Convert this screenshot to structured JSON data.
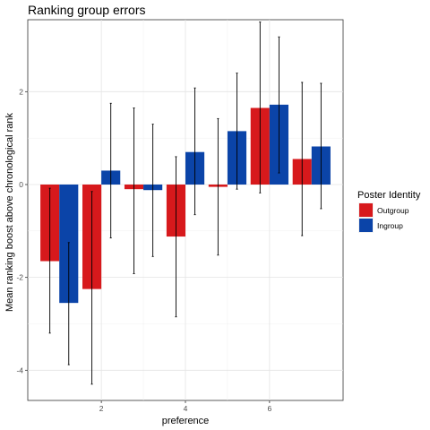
{
  "chart_data": {
    "type": "bar",
    "title": "Ranking group errors",
    "xlabel": "preference",
    "ylabel": "Mean ranking boost above chronological rank",
    "x": [
      1,
      2,
      3,
      4,
      5,
      6,
      7
    ],
    "xlim": [
      0.25,
      7.75
    ],
    "ylim": [
      -4.65,
      3.55
    ],
    "x_ticks": [
      2,
      4,
      6
    ],
    "x_tick_labels": [
      "2",
      "4",
      "6"
    ],
    "y_ticks": [
      -4,
      -2,
      0,
      2
    ],
    "y_tick_labels": [
      "-4",
      "-2",
      "0",
      "2"
    ],
    "grid": true,
    "legend": {
      "title": "Poster Identity",
      "position": "right"
    },
    "series": [
      {
        "name": "Outgroup",
        "color": "#d7191c",
        "values": [
          -1.65,
          -2.25,
          -0.1,
          -1.12,
          -0.05,
          1.65,
          0.55
        ],
        "error_low": [
          -3.2,
          -4.3,
          -1.92,
          -2.85,
          -1.52,
          -0.18,
          -1.1
        ],
        "error_high": [
          -0.08,
          -0.15,
          1.65,
          0.6,
          1.42,
          3.5,
          2.2
        ]
      },
      {
        "name": "Ingroup",
        "color": "#0b44a8",
        "values": [
          -2.55,
          0.3,
          -0.12,
          0.7,
          1.15,
          1.72,
          0.82
        ],
        "error_low": [
          -3.88,
          -1.15,
          -1.55,
          -0.65,
          -0.1,
          0.25,
          -0.52
        ],
        "error_high": [
          -1.25,
          1.75,
          1.3,
          2.08,
          2.4,
          3.18,
          2.18
        ]
      }
    ]
  }
}
